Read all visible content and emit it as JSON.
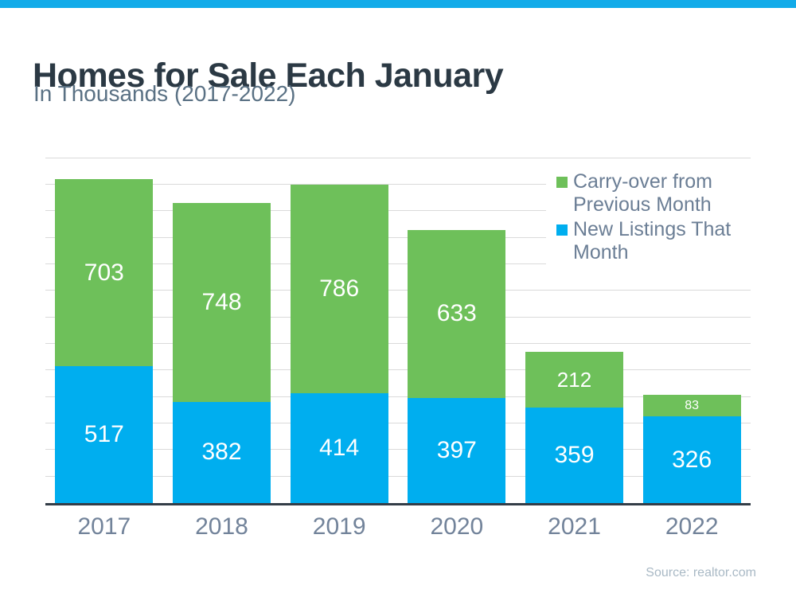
{
  "header": {
    "title": "Homes for Sale Each January",
    "subtitle": "In Thousands (2017-2022)"
  },
  "footer": {
    "source": "Source: realtor.com"
  },
  "colors": {
    "top_strip": "#12ABE9",
    "green": "#6EC05A",
    "blue": "#00AEEF",
    "title_text": "#2B3944",
    "subtitle_text": "#5A7184",
    "axis_label_text": "#72839A",
    "legend_text": "#6B7E95",
    "value_label_text": "#FFFFFF",
    "gridline": "#DADADA",
    "axis_line": "#333D47",
    "source_text": "#A9B9C5"
  },
  "chart_data": {
    "type": "bar",
    "stacked": true,
    "title": "Homes for Sale Each January",
    "subtitle": "In Thousands (2017-2022)",
    "xlabel": "",
    "ylabel": "",
    "categories": [
      "2017",
      "2018",
      "2019",
      "2020",
      "2021",
      "2022"
    ],
    "series": [
      {
        "name": "New Listings That Month",
        "color_key": "blue",
        "values": [
          517,
          382,
          414,
          397,
          359,
          326
        ]
      },
      {
        "name": "Carry-over from Previous Month",
        "color_key": "green",
        "values": [
          703,
          748,
          786,
          633,
          212,
          83
        ]
      }
    ],
    "legend": [
      {
        "label": "Carry-over from Previous Month",
        "color_key": "green"
      },
      {
        "label": "New Listings That Month",
        "color_key": "blue"
      }
    ],
    "legend_position": "top-right",
    "grid": true,
    "gridline_interval": 100,
    "ylim": [
      0,
      1300
    ],
    "data_labels": true
  }
}
